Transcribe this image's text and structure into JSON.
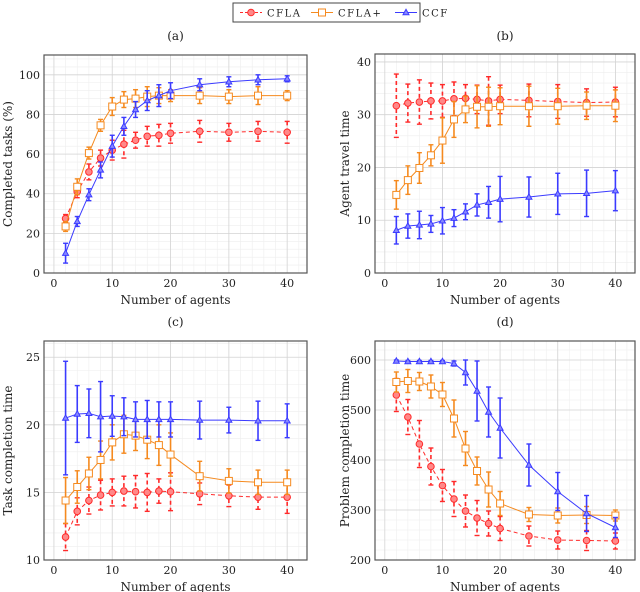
{
  "chart_data": [
    {
      "type": "line",
      "panel_label": "(a)",
      "xlabel": "Number of agents",
      "ylabel": "Completed tasks (%)",
      "xlim": [
        -1.7,
        43.4
      ],
      "ylim": [
        0,
        110
      ],
      "xticks": [
        0,
        10,
        20,
        30,
        40
      ],
      "yticks": [
        0,
        20,
        40,
        60,
        80,
        100
      ],
      "grid": true,
      "x": [
        2,
        4,
        6,
        8,
        10,
        12,
        14,
        16,
        18,
        20,
        25,
        30,
        35,
        40
      ],
      "series": [
        {
          "name": "CFLA",
          "values": [
            27.5,
            41,
            51,
            58,
            62,
            65,
            67,
            69,
            69.5,
            70.5,
            71.5,
            71,
            71.5,
            71
          ],
          "errors": [
            2,
            3,
            4,
            4,
            5,
            7,
            4,
            5,
            5.5,
            5,
            5.5,
            4.5,
            5,
            5.5
          ]
        },
        {
          "name": "CFLA+",
          "values": [
            23.5,
            43.5,
            60.5,
            74.5,
            84,
            87.5,
            88,
            89,
            89.5,
            89.5,
            89.5,
            89,
            89.5,
            89.5
          ],
          "errors": [
            2.5,
            4,
            3,
            3,
            4.5,
            4,
            4.5,
            5,
            4,
            3,
            4,
            3.5,
            4.5,
            2.5
          ]
        },
        {
          "name": "CCF",
          "values": [
            10,
            26,
            39.5,
            52,
            64,
            74,
            82.5,
            87,
            89.5,
            92,
            95,
            96.5,
            97.5,
            98
          ],
          "errors": [
            5,
            2.5,
            3,
            4,
            5.5,
            4.5,
            4,
            5,
            5.5,
            4,
            3,
            2.5,
            2.5,
            1.5
          ]
        }
      ]
    },
    {
      "type": "line",
      "panel_label": "(b)",
      "xlabel": "Number of agents",
      "ylabel": "Agent travel time",
      "xlim": [
        -1.7,
        43.4
      ],
      "ylim": [
        0,
        41.5
      ],
      "xticks": [
        0,
        10,
        20,
        30,
        40
      ],
      "yticks": [
        0,
        10,
        20,
        30,
        40
      ],
      "grid": true,
      "x": [
        2,
        4,
        6,
        8,
        10,
        12,
        14,
        16,
        18,
        20,
        25,
        30,
        35,
        40
      ],
      "series": [
        {
          "name": "CFLA",
          "values": [
            31.7,
            32.2,
            32.4,
            32.6,
            32.6,
            33,
            33.1,
            32.9,
            32.6,
            32.9,
            32.7,
            32.5,
            32.3,
            32.4
          ],
          "errors": [
            6,
            3.6,
            4.2,
            3.4,
            3.1,
            3.2,
            2.6,
            2.7,
            4.6,
            2.7,
            3.1,
            3.2,
            2.6,
            2.8
          ]
        },
        {
          "name": "CFLA+",
          "values": [
            14.8,
            17.6,
            19.9,
            22.3,
            25.1,
            29.1,
            31,
            31.5,
            31.5,
            31.6,
            31.6,
            31.6,
            31.7,
            31.7
          ],
          "errors": [
            2.7,
            2.7,
            2.9,
            2,
            4.3,
            3.4,
            2.5,
            4,
            3.7,
            3.5,
            3.8,
            3.4,
            2.6,
            3
          ]
        },
        {
          "name": "CCF",
          "values": [
            8.1,
            8.9,
            9.1,
            9.3,
            9.9,
            10.4,
            11.6,
            12.9,
            13.4,
            14,
            14.4,
            15,
            15.1,
            15.6
          ],
          "errors": [
            2.6,
            2.3,
            2.6,
            1.6,
            2.5,
            1.6,
            1.5,
            2.1,
            3,
            4.3,
            3.8,
            3.9,
            4.4,
            3.8
          ]
        }
      ]
    },
    {
      "type": "line",
      "panel_label": "(c)",
      "xlabel": "Number of agents",
      "ylabel": "Task completion time",
      "xlim": [
        -1.7,
        43.4
      ],
      "ylim": [
        10,
        26.2
      ],
      "xticks": [
        0,
        10,
        20,
        30,
        40
      ],
      "yticks": [
        10,
        15,
        20,
        25
      ],
      "grid": true,
      "x": [
        2,
        4,
        6,
        8,
        10,
        12,
        14,
        16,
        18,
        20,
        25,
        30,
        35,
        40
      ],
      "series": [
        {
          "name": "CFLA",
          "values": [
            11.7,
            13.6,
            14.4,
            14.8,
            15,
            15.1,
            15.05,
            15,
            15.1,
            15.05,
            14.9,
            14.75,
            14.65,
            14.65
          ],
          "errors": [
            1,
            1,
            1,
            1.1,
            1,
            1.1,
            1.2,
            1.4,
            0.9,
            1.4,
            0.8,
            0.8,
            0.9,
            1.2
          ]
        },
        {
          "name": "CFLA+",
          "values": [
            14.4,
            15.4,
            16.4,
            17.4,
            18.7,
            19.3,
            19.2,
            18.9,
            18.5,
            17.8,
            16.2,
            15.85,
            15.75,
            15.75
          ],
          "errors": [
            1.7,
            1.2,
            1.2,
            1.4,
            1.3,
            1.4,
            1.1,
            1.4,
            1.5,
            1.6,
            1.1,
            0.9,
            0.9,
            0.9
          ]
        },
        {
          "name": "CCF",
          "values": [
            20.5,
            20.8,
            20.85,
            20.6,
            20.65,
            20.6,
            20.4,
            20.4,
            20.4,
            20.4,
            20.35,
            20.35,
            20.3,
            20.3
          ],
          "errors": [
            4.2,
            2.1,
            1.8,
            2.6,
            1.5,
            1.4,
            1.3,
            1.4,
            1.3,
            1.3,
            1.4,
            0.95,
            1.45,
            1.25
          ]
        }
      ]
    },
    {
      "type": "line",
      "panel_label": "(d)",
      "xlabel": "Number of agents",
      "ylabel": "Problem completion time",
      "xlim": [
        -1.7,
        43.4
      ],
      "ylim": [
        200,
        638
      ],
      "xticks": [
        0,
        10,
        20,
        30,
        40
      ],
      "yticks": [
        200,
        300,
        400,
        500,
        600
      ],
      "grid": true,
      "x": [
        2,
        4,
        6,
        8,
        10,
        12,
        14,
        16,
        18,
        20,
        25,
        30,
        35,
        40
      ],
      "series": [
        {
          "name": "CFLA",
          "values": [
            530,
            486,
            432,
            387,
            349,
            322,
            298,
            284,
            273,
            263,
            248,
            240,
            239,
            238
          ],
          "errors": [
            33,
            35,
            47,
            37,
            32,
            35,
            32,
            35,
            25,
            24,
            20,
            18,
            20,
            16
          ]
        },
        {
          "name": "CFLA+",
          "values": [
            556,
            558,
            557,
            547,
            531,
            483,
            423,
            378,
            341,
            313,
            291,
            289,
            290,
            289
          ],
          "errors": [
            20,
            23,
            18,
            23,
            24,
            37,
            34,
            28,
            35,
            24,
            14,
            15,
            17,
            11
          ]
        },
        {
          "name": "CCF",
          "values": [
            598,
            597,
            597,
            597,
            597,
            593,
            575,
            538,
            496,
            464,
            390,
            337,
            293,
            265
          ],
          "errors": [
            2,
            2,
            2,
            2,
            2,
            5,
            25,
            60,
            50,
            60,
            42,
            38,
            36,
            20
          ]
        }
      ]
    }
  ],
  "legend": {
    "position": "top-center",
    "entries": [
      {
        "label": "CFLA",
        "color": "#ff2a2a",
        "marker": "circle",
        "dash": true
      },
      {
        "label": "CFLA+",
        "color": "#f58a1f",
        "marker": "square",
        "dash": false
      },
      {
        "label": "CCF",
        "color": "#3b3bff",
        "marker": "triangle",
        "dash": false
      }
    ]
  }
}
